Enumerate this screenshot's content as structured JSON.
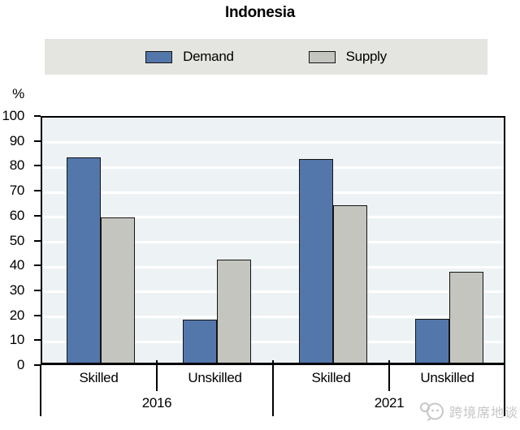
{
  "title": "Indonesia",
  "legend": {
    "items": [
      {
        "label": "Demand",
        "color": "#5377ab"
      },
      {
        "label": "Supply",
        "color": "#c5c5c0"
      }
    ]
  },
  "y_axis": {
    "unit_label": "%"
  },
  "watermark": {
    "text": "跨境席地谈",
    "icon": "chat-bubbles-logo",
    "color": "#c6c6c6"
  },
  "chart_data": {
    "type": "bar",
    "title": "Indonesia",
    "ylabel": "%",
    "ylim": [
      0,
      100
    ],
    "ytick_step": 10,
    "grid": "horizontal white gridlines on light blue plot background",
    "plot_bg": "#edf3f5",
    "legend_position": "top",
    "group_labels": [
      "2016",
      "2021"
    ],
    "categories": [
      "Skilled",
      "Unskilled",
      "Skilled",
      "Unskilled"
    ],
    "series": [
      {
        "name": "Demand",
        "color": "#5377ab",
        "values": [
          82.4,
          17.2,
          81.9,
          17.6
        ]
      },
      {
        "name": "Supply",
        "color": "#c5c5c0",
        "values": [
          58.3,
          41.5,
          63.3,
          36.4
        ]
      }
    ]
  }
}
